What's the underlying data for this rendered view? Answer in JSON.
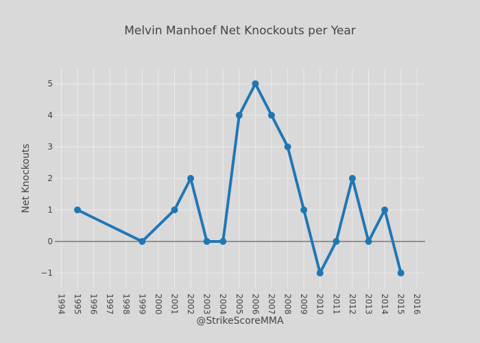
{
  "chart_data": {
    "type": "line",
    "title": "Melvin Manhoef Net Knockouts per Year",
    "xlabel": "@StrikeScoreMMA",
    "ylabel": "Net Knockouts",
    "x": [
      1995,
      1999,
      2001,
      2002,
      2003,
      2004,
      2005,
      2006,
      2007,
      2008,
      2009,
      2010,
      2011,
      2012,
      2013,
      2014,
      2015
    ],
    "series": [
      {
        "name": "Net Knockouts",
        "values": [
          1,
          0,
          1,
          2,
          0,
          0,
          4,
          5,
          4,
          3,
          1,
          -1,
          0,
          2,
          0,
          1,
          -1
        ],
        "color": "#1f77b4"
      }
    ],
    "xlim": [
      1993.6,
      2016.5
    ],
    "ylim": [
      -1.48,
      5.48
    ],
    "xticks": [
      "1994",
      "1995",
      "1996",
      "1997",
      "1998",
      "1999",
      "2000",
      "2001",
      "2002",
      "2003",
      "2004",
      "2005",
      "2006",
      "2007",
      "2008",
      "2009",
      "2010",
      "2011",
      "2012",
      "2013",
      "2014",
      "2015",
      "2016"
    ],
    "yticks": [
      "−1",
      "0",
      "1",
      "2",
      "3",
      "4",
      "5"
    ],
    "grid": true,
    "legend": "none"
  }
}
